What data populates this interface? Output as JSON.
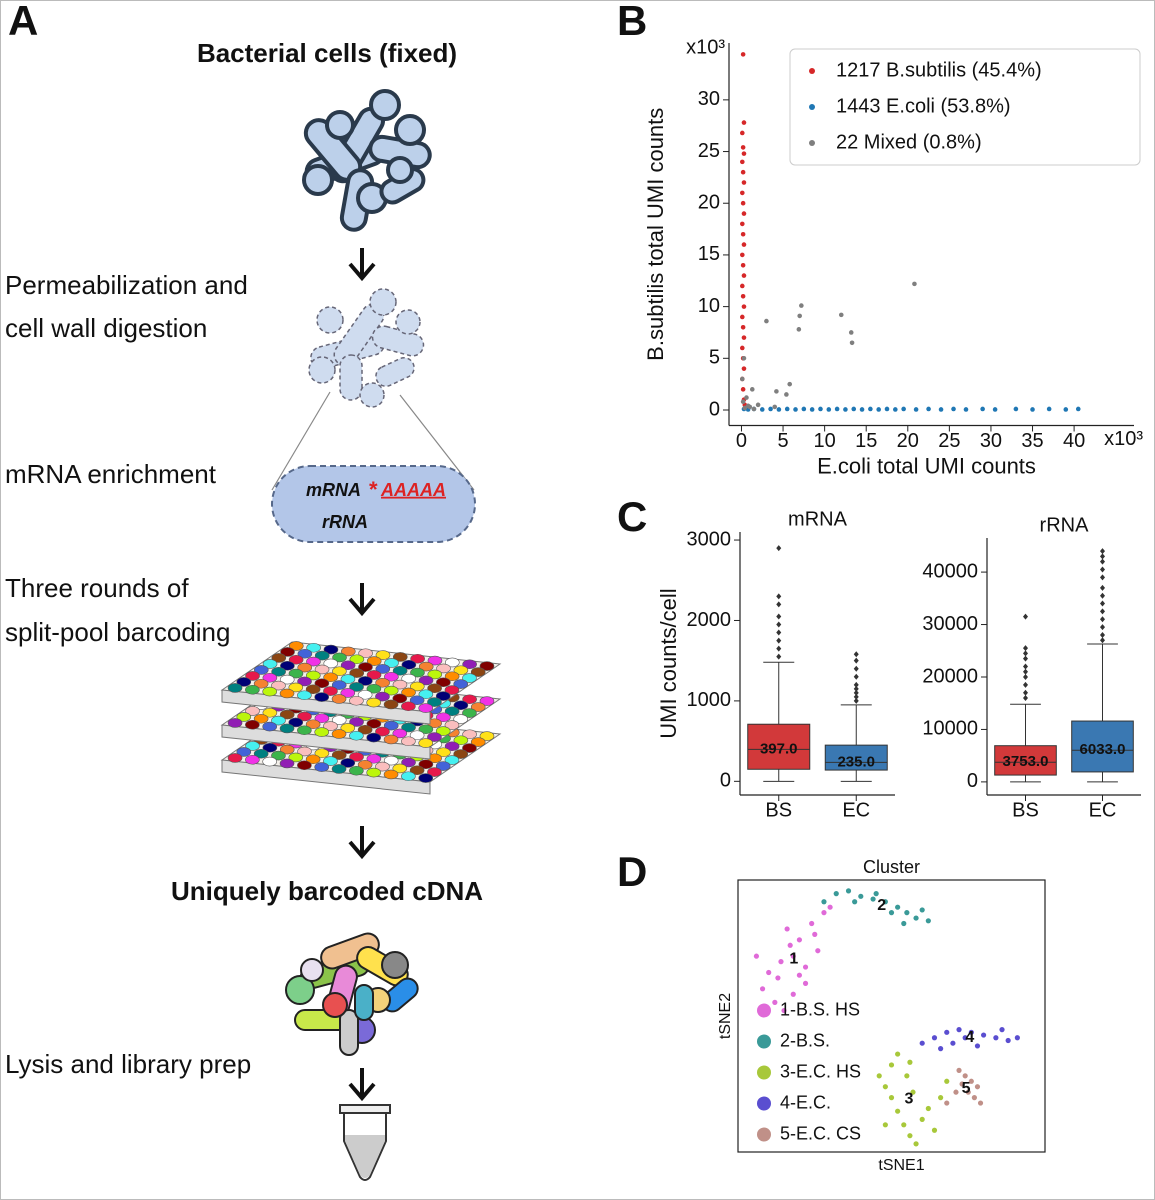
{
  "panel_a": {
    "label": "A",
    "title": "Bacterial cells (fixed)",
    "step1": [
      "Permeabilization and",
      "cell wall digestion"
    ],
    "step2": "mRNA enrichment",
    "mrna": "mRNA",
    "star": "*",
    "polya": "AAAAA",
    "rrna": "rRNA",
    "step3": [
      "Three rounds of",
      "split-pool barcoding"
    ],
    "product": "Uniquely barcoded cDNA",
    "step4": "Lysis and library prep"
  },
  "chart_data": [
    {
      "type": "scatter",
      "panel": "B",
      "xlabel": "E.coli total UMI counts",
      "ylabel": "B.subtilis total UMI counts",
      "x_offset": "x10³",
      "y_offset": "x10³",
      "xlim": [
        -1.5,
        46
      ],
      "ylim": [
        -1.5,
        35.5
      ],
      "xticks": [
        0,
        5,
        10,
        15,
        20,
        25,
        30,
        35,
        40
      ],
      "yticks": [
        0,
        5,
        10,
        15,
        20,
        25,
        30
      ],
      "legend": "upper right",
      "legend_frame": true,
      "box_frame": false,
      "marker_size": 2.3,
      "series": [
        {
          "name": "1217 B.subtilis (45.4%)",
          "color": "#d62728",
          "x": [
            0.2,
            0.3,
            0.1,
            0.2,
            0.3,
            0.1,
            0.2,
            0.3,
            0.1,
            0.2,
            0.3,
            0.1,
            0.2,
            0.3,
            0.1,
            0.2,
            0.3,
            0.1,
            0.2,
            0.3,
            0.1,
            0.2,
            0.3,
            0.1,
            0.2,
            0.3,
            0.1,
            0.2,
            0.3,
            0.4
          ],
          "values": [
            34.4,
            27.8,
            26.8,
            25.4,
            24.8,
            24,
            23,
            22,
            21,
            20,
            19,
            18,
            17,
            16,
            15,
            14,
            13,
            12,
            11,
            10,
            9,
            8,
            7,
            6,
            5,
            4,
            3,
            2,
            1,
            0.5
          ]
        },
        {
          "name": "1443 E.coli (53.8%)",
          "color": "#1f77b4",
          "x": [
            0.3,
            0.8,
            1.5,
            2.5,
            3.5,
            4.5,
            5.5,
            6.5,
            7.5,
            8.5,
            9.5,
            10.5,
            11.5,
            12.5,
            13.5,
            14.5,
            15.5,
            16.5,
            17.5,
            18.5,
            19.5,
            21,
            22.5,
            24,
            25.5,
            27,
            29,
            30.5,
            33,
            35,
            37,
            39,
            40.5
          ],
          "values": [
            0.1,
            0.05,
            0.1,
            0.05,
            0.1,
            0.05,
            0.1,
            0.05,
            0.1,
            0.05,
            0.1,
            0.05,
            0.1,
            0.05,
            0.1,
            0.05,
            0.1,
            0.05,
            0.1,
            0.05,
            0.1,
            0.05,
            0.1,
            0.05,
            0.1,
            0.05,
            0.1,
            0.05,
            0.1,
            0.05,
            0.1,
            0.05,
            0.1
          ]
        },
        {
          "name": "22 Mixed (0.8%)",
          "color": "#7f7f7f",
          "x": [
            0.4,
            0.8,
            1.3,
            3,
            4.2,
            5.4,
            5.8,
            6.9,
            7,
            7.2,
            12,
            13.2,
            13.3,
            20.8,
            0.2,
            0.6,
            1,
            2,
            0.1,
            0.3,
            4,
            1.5
          ],
          "values": [
            0.2,
            0.4,
            2,
            8.6,
            1.8,
            1.5,
            2.5,
            7.8,
            9.1,
            10.1,
            9.2,
            7.5,
            6.5,
            12.2,
            0.8,
            1.2,
            0.3,
            0.5,
            3,
            5,
            0.3,
            0.1
          ]
        }
      ]
    },
    {
      "type": "box",
      "panel": "C",
      "title": "mRNA",
      "ylabel": "UMI counts/cell",
      "categories": [
        "BS",
        "EC"
      ],
      "colors": [
        "#d2393a",
        "#3a78b2"
      ],
      "ylim": [
        -170,
        3100
      ],
      "yticks": [
        0,
        1000,
        2000,
        3000
      ],
      "q1": [
        150,
        140
      ],
      "median": [
        397,
        235
      ],
      "value_labels": [
        "397.0",
        "235.0"
      ],
      "q3": [
        710,
        450
      ],
      "whisker_low": [
        0,
        0
      ],
      "whisker_high": [
        1480,
        950
      ],
      "outliers": [
        [
          1550,
          1650,
          1750,
          1850,
          1950,
          2050,
          2200,
          2300,
          2900
        ],
        [
          1000,
          1050,
          1100,
          1150,
          1200,
          1300,
          1400,
          1500,
          1580
        ]
      ]
    },
    {
      "type": "box",
      "title": "rRNA",
      "categories": [
        "BS",
        "EC"
      ],
      "colors": [
        "#d2393a",
        "#3a78b2"
      ],
      "ylim": [
        -2500,
        46500
      ],
      "yticks": [
        0,
        10000,
        20000,
        30000,
        40000
      ],
      "q1": [
        1300,
        1900
      ],
      "median": [
        3753,
        6033
      ],
      "value_labels": [
        "3753.0",
        "6033.0"
      ],
      "q3": [
        6900,
        11600
      ],
      "whisker_low": [
        0,
        0
      ],
      "whisker_high": [
        14800,
        26300
      ],
      "outliers": [
        [
          16000,
          17000,
          18500,
          20000,
          21000,
          22000,
          23500,
          24500,
          25500,
          31500
        ],
        [
          27000,
          28000,
          29500,
          31000,
          32500,
          34000,
          35500,
          37000,
          39000,
          40500,
          42000,
          43000,
          44000
        ]
      ]
    },
    {
      "type": "scatter",
      "panel": "D",
      "title": "Cluster",
      "xlabel": "tSNE1",
      "ylabel": "tSNE2",
      "xlim": [
        0,
        100
      ],
      "ylim": [
        0,
        100
      ],
      "legend": "lower left",
      "legend_frame": false,
      "box_frame": true,
      "marker_size": 2.6,
      "series": [
        {
          "name": "1-B.S. HS",
          "label": "1",
          "color": "#e06ad8",
          "x": [
            8,
            12,
            15,
            18,
            22,
            10,
            14,
            18,
            22,
            26,
            20,
            16,
            24,
            28,
            13,
            20,
            6,
            25,
            30,
            17
          ],
          "values": [
            60,
            55,
            52,
            58,
            62,
            66,
            70,
            72,
            68,
            74,
            78,
            82,
            84,
            88,
            64,
            65,
            72,
            80,
            90,
            76
          ]
        },
        {
          "name": "2-B.S.",
          "label": "2",
          "color": "#3a9a98",
          "x": [
            28,
            32,
            36,
            40,
            44,
            48,
            52,
            55,
            58,
            62,
            50,
            45,
            38,
            60,
            54
          ],
          "values": [
            92,
            95,
            96,
            94,
            93,
            92,
            90,
            88,
            86,
            85,
            88,
            95,
            92,
            89,
            84
          ]
        },
        {
          "name": "3-E.C. HS",
          "label": "3",
          "color": "#a8c83a",
          "x": [
            46,
            48,
            50,
            52,
            54,
            56,
            58,
            60,
            62,
            66,
            68,
            50,
            52,
            55,
            57,
            48,
            64,
            56
          ],
          "values": [
            28,
            24,
            20,
            15,
            10,
            6,
            3,
            12,
            16,
            20,
            26,
            32,
            36,
            28,
            22,
            10,
            8,
            33
          ]
        },
        {
          "name": "4-E.C.",
          "label": "4",
          "color": "#5a4ed0",
          "x": [
            60,
            64,
            68,
            72,
            76,
            80,
            84,
            88,
            91,
            70,
            78,
            86,
            66,
            74
          ],
          "values": [
            40,
            42,
            44,
            45,
            44,
            43,
            42,
            41,
            42,
            40,
            39,
            45,
            38,
            42
          ]
        },
        {
          "name": "5-E.C. CS",
          "label": "5",
          "color": "#c09088",
          "x": [
            72,
            74,
            76,
            78,
            75,
            77,
            79,
            73,
            71,
            68
          ],
          "values": [
            30,
            28,
            26,
            24,
            22,
            20,
            18,
            25,
            22,
            18
          ]
        }
      ]
    }
  ]
}
